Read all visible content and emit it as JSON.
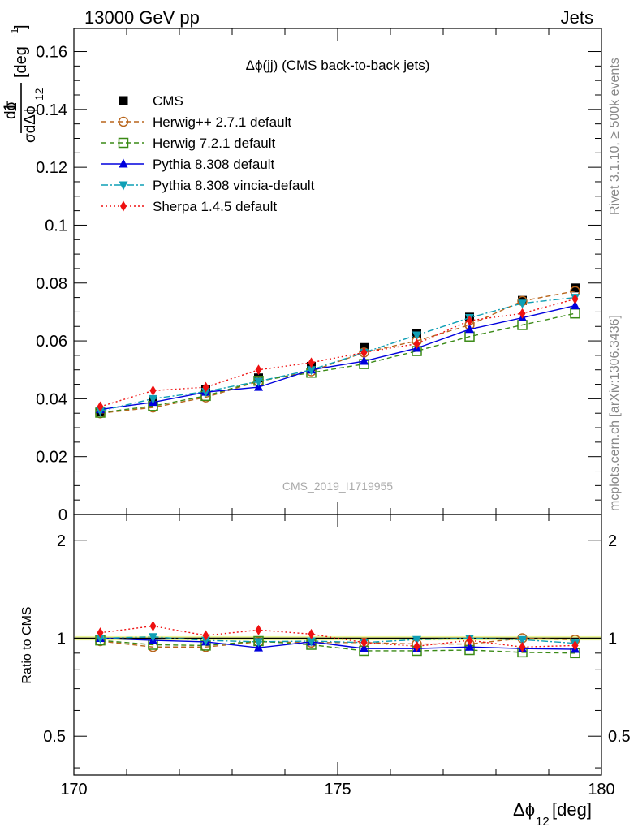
{
  "header": {
    "left": "13000 GeV pp",
    "right": "Jets"
  },
  "side_labels": {
    "rivet": "Rivet 3.1.10, ≥ 500k events",
    "mcplots": "mcplots.cern.ch [arXiv:1306.3436]"
  },
  "watermark": "CMS_2019_I1719955",
  "colors": {
    "CMS": "#000000",
    "Herwig++ 2.7.1 default": "#b8651b",
    "Herwig 7.2.1 default": "#3a8a16",
    "Pythia 8.308 default": "#0000dd",
    "Pythia 8.308 vincia-default": "#0f9fb5",
    "Sherpa 1.4.5 default": "#ee1111",
    "band": "#ecf79b"
  },
  "chart_data": [
    {
      "type": "line",
      "title": "Δϕ(jj) (CMS back-to-back jets)",
      "ylabel_main": "1/σ dσ/dΔϕ_12 [deg⁻¹]",
      "ylabel_parts": {
        "numerator": "dσ",
        "denominator": "σdΔϕ",
        "one": "1",
        "sub": "12",
        "unit": "[deg",
        "exp": "-1",
        "close": "]"
      },
      "ylim": [
        0,
        0.168
      ],
      "xlim": [
        170,
        180
      ],
      "yticks": [
        0,
        0.02,
        0.04,
        0.06,
        0.08,
        0.1,
        0.12,
        0.14,
        0.16
      ],
      "ytick_labels": [
        "0",
        "0.02",
        "0.04",
        "0.06",
        "0.08",
        "0.1",
        "0.12",
        "0.14",
        "0.16"
      ],
      "x": [
        170.5,
        171.5,
        172.5,
        173.5,
        174.5,
        175.5,
        176.5,
        177.5,
        178.5,
        179.5
      ],
      "legend_position": "top-left",
      "series": [
        {
          "name": "CMS",
          "marker": "square-filled",
          "line": "none",
          "values": [
            0.0357,
            0.0394,
            0.0432,
            0.0472,
            0.0512,
            0.0577,
            0.0625,
            0.0682,
            0.074,
            0.0783
          ]
        },
        {
          "name": "Herwig++ 2.7.1 default",
          "marker": "circle-open",
          "line": "dashed",
          "values": [
            0.035,
            0.037,
            0.0405,
            0.046,
            0.0495,
            0.056,
            0.06,
            0.0655,
            0.0738,
            0.0772
          ]
        },
        {
          "name": "Herwig 7.2.1 default",
          "marker": "square-open",
          "line": "dashed",
          "values": [
            0.0352,
            0.0375,
            0.041,
            0.0462,
            0.049,
            0.052,
            0.0565,
            0.0615,
            0.0655,
            0.0695
          ]
        },
        {
          "name": "Pythia 8.308 default",
          "marker": "triangle-up-filled",
          "line": "solid",
          "values": [
            0.0363,
            0.0388,
            0.0423,
            0.044,
            0.05,
            0.053,
            0.0575,
            0.064,
            0.068,
            0.0722
          ]
        },
        {
          "name": "Pythia 8.308 vincia-default",
          "marker": "triangle-down-filled",
          "line": "dashdot",
          "values": [
            0.0358,
            0.04,
            0.0425,
            0.046,
            0.05,
            0.056,
            0.062,
            0.068,
            0.073,
            0.075
          ]
        },
        {
          "name": "Sherpa 1.4.5 default",
          "marker": "diamond-filled",
          "line": "dotted",
          "values": [
            0.0373,
            0.0428,
            0.044,
            0.05,
            0.0525,
            0.056,
            0.059,
            0.067,
            0.0695,
            0.0745
          ]
        }
      ]
    },
    {
      "type": "line",
      "ylabel": "Ratio to CMS",
      "xlabel": "Δϕ_12 [deg]",
      "xlabel_parts": {
        "main": "Δϕ",
        "sub": "12",
        "unit": " [deg]"
      },
      "ylim": [
        0.38,
        2.4
      ],
      "log_y": true,
      "xlim": [
        170,
        180
      ],
      "yticks": [
        0.5,
        1,
        2
      ],
      "ytick_labels": [
        "0.5",
        "1",
        "2"
      ],
      "xticks": [
        170,
        175,
        180
      ],
      "xtick_labels": [
        "170",
        "175",
        "180"
      ],
      "x": [
        170.5,
        171.5,
        172.5,
        173.5,
        174.5,
        175.5,
        176.5,
        177.5,
        178.5,
        179.5
      ],
      "band": [
        0.985,
        1.015
      ],
      "series": [
        {
          "name": "Herwig++ 2.7.1 default",
          "values": [
            0.98,
            0.94,
            0.94,
            0.975,
            0.97,
            0.97,
            0.96,
            0.96,
            1.0,
            0.99
          ]
        },
        {
          "name": "Herwig 7.2.1 default",
          "values": [
            0.985,
            0.955,
            0.95,
            0.98,
            0.955,
            0.915,
            0.915,
            0.92,
            0.905,
            0.9
          ]
        },
        {
          "name": "Pythia 8.308 default",
          "values": [
            1.0,
            0.985,
            0.975,
            0.935,
            0.975,
            0.93,
            0.93,
            0.94,
            0.93,
            0.925
          ]
        },
        {
          "name": "Pythia 8.308 vincia-default",
          "values": [
            1.0,
            1.01,
            0.985,
            0.975,
            0.98,
            0.97,
            0.99,
            1.0,
            0.99,
            0.965
          ]
        },
        {
          "name": "Sherpa 1.4.5 default",
          "values": [
            1.04,
            1.09,
            1.02,
            1.06,
            1.03,
            0.97,
            0.945,
            0.985,
            0.94,
            0.95
          ]
        }
      ]
    }
  ]
}
